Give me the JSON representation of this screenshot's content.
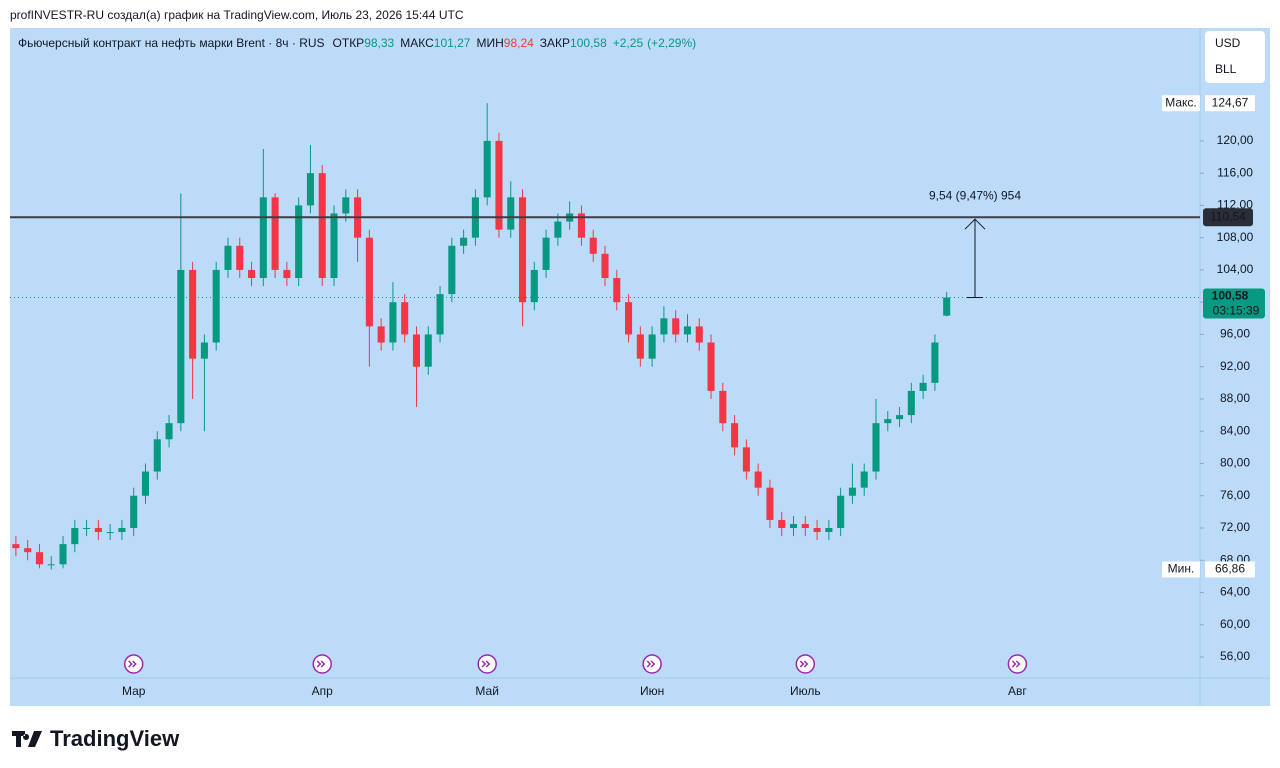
{
  "header": "profINVESTR-RU создал(а) график на TradingView.com, Июль 23, 2026 15:44 UTC",
  "logo": "TradingView",
  "chart_data": {
    "type": "candlestick",
    "title": "Фьючерсный контракт на нефть марки Brent · 8ч · RUS",
    "ohlc_legend": [
      {
        "name": "ОТКР",
        "value": 98.33,
        "label": "98,33"
      },
      {
        "name": "МАКС",
        "value": 101.27,
        "label": "101,27"
      },
      {
        "name": "МИН",
        "value": 98.24,
        "label": "98,24"
      },
      {
        "name": "ЗАКР",
        "value": 100.58,
        "label": "100,58"
      }
    ],
    "change": {
      "value": 2.25,
      "label": "+2,25"
    },
    "change_pct": {
      "value": 2.29,
      "label": "(+2,29%)"
    },
    "currency": [
      "USD",
      "BLL"
    ],
    "up_color": "#089981",
    "down_color": "#f23645",
    "categories": [
      null,
      null,
      null,
      null,
      null,
      null,
      null,
      null,
      null,
      null,
      "Мар",
      null,
      null,
      null,
      null,
      null,
      null,
      null,
      null,
      null,
      null,
      null,
      null,
      null,
      null,
      null,
      "Апр",
      null,
      null,
      null,
      null,
      null,
      null,
      null,
      null,
      null,
      null,
      null,
      null,
      null,
      "Май",
      null,
      null,
      null,
      null,
      null,
      null,
      null,
      null,
      null,
      null,
      null,
      null,
      null,
      "Июн",
      null,
      null,
      null,
      null,
      null,
      null,
      null,
      null,
      null,
      null,
      null,
      null,
      "Июль",
      null,
      null,
      null,
      null,
      null,
      null,
      null,
      null,
      null,
      null,
      null,
      null,
      null,
      null,
      null,
      null,
      null,
      "Авг",
      null,
      null,
      null,
      null,
      null,
      null,
      null,
      null,
      null,
      null,
      null,
      null,
      null,
      null,
      null
    ],
    "open": [
      70,
      69.5,
      69,
      67.5,
      67.5,
      70,
      72,
      72,
      71.5,
      71.5,
      72,
      76,
      79,
      83,
      85,
      104,
      93,
      95,
      104,
      107,
      104,
      103,
      113,
      104,
      103,
      112,
      116,
      103,
      111,
      113,
      108,
      97,
      95,
      100,
      96,
      92,
      96,
      101,
      107,
      108,
      113,
      120,
      109,
      113,
      100,
      104,
      108,
      110,
      111,
      108,
      106,
      103,
      100,
      96,
      93,
      96,
      98,
      96,
      97,
      95,
      89,
      85,
      82,
      79,
      77,
      73,
      72,
      72.5,
      72,
      71.5,
      72,
      76,
      77,
      79,
      85,
      85.5,
      86,
      89,
      90,
      98.33,
      null,
      null,
      null,
      null,
      null,
      null,
      null,
      null,
      null,
      null,
      null,
      null,
      null,
      null,
      null,
      null,
      null,
      null,
      null,
      null,
      null
    ],
    "high": [
      71,
      70.5,
      70,
      68.5,
      71,
      73,
      73,
      73,
      72.5,
      73,
      77,
      80,
      84,
      86,
      113.5,
      105,
      96,
      105,
      108,
      108,
      105,
      119,
      113.5,
      105,
      113,
      119.5,
      117,
      112,
      114,
      114,
      109,
      98,
      102.5,
      101,
      97,
      97,
      102,
      108,
      109,
      114,
      124.67,
      121,
      115,
      114,
      105,
      109,
      111,
      112.5,
      112,
      109,
      107,
      104,
      101,
      97,
      97,
      99.5,
      99,
      98.5,
      98,
      96,
      90,
      86,
      83,
      80,
      78,
      74,
      73.5,
      73.5,
      73,
      73,
      77,
      80,
      80,
      88,
      86.5,
      87,
      90,
      91,
      96,
      101.27,
      null,
      null,
      null,
      null,
      null,
      null,
      null,
      null,
      null,
      null,
      null,
      null,
      null,
      null,
      null,
      null,
      null,
      null,
      null,
      null,
      null
    ],
    "low": [
      68.5,
      68,
      67,
      66.86,
      67,
      69,
      71,
      70.5,
      70.5,
      70.5,
      71,
      75,
      78,
      82,
      84,
      88,
      84,
      94,
      103,
      103,
      102,
      102,
      103,
      102,
      102,
      111,
      102,
      102,
      110,
      105,
      92,
      94,
      94,
      95,
      87,
      91,
      95,
      100,
      106,
      107,
      112,
      108,
      108,
      97,
      99,
      103,
      107,
      109,
      107,
      105,
      102,
      99,
      95,
      92,
      92,
      95,
      95,
      95,
      94,
      88,
      84,
      81,
      78,
      76,
      72,
      71,
      71,
      71,
      70.5,
      70.5,
      71,
      75,
      76,
      78,
      84,
      84.5,
      85,
      88,
      89,
      98.24,
      null,
      null,
      null,
      null,
      null,
      null,
      null,
      null,
      null,
      null,
      null,
      null,
      null,
      null,
      null,
      null,
      null,
      null,
      null,
      null,
      null
    ],
    "close": [
      69.5,
      69,
      67.5,
      67.5,
      70,
      72,
      72,
      71.5,
      71.5,
      72,
      76,
      79,
      83,
      85,
      104,
      93,
      95,
      104,
      107,
      104,
      103,
      113,
      104,
      103,
      112,
      116,
      103,
      111,
      113,
      108,
      97,
      95,
      100,
      96,
      92,
      96,
      101,
      107,
      108,
      113,
      120,
      109,
      113,
      100,
      104,
      108,
      110,
      111,
      108,
      106,
      103,
      100,
      96,
      93,
      96,
      98,
      96,
      97,
      95,
      89,
      85,
      82,
      79,
      77,
      73,
      72,
      72.5,
      72,
      71.5,
      72,
      76,
      77,
      79,
      85,
      85.5,
      86,
      89,
      90,
      95,
      100.58,
      null,
      null,
      null,
      null,
      null,
      null,
      null,
      null,
      null,
      null,
      null,
      null,
      null,
      null,
      null,
      null,
      null,
      null,
      null,
      null,
      null
    ],
    "ylim": [
      53.4,
      134.0
    ],
    "yticks": [
      {
        "value": 56,
        "label": "56,00"
      },
      {
        "value": 60,
        "label": "60,00"
      },
      {
        "value": 64,
        "label": "64,00"
      },
      {
        "value": 68,
        "label": "68,00"
      },
      {
        "value": 72,
        "label": "72,00"
      },
      {
        "value": 76,
        "label": "76,00"
      },
      {
        "value": 80,
        "label": "80,00"
      },
      {
        "value": 84,
        "label": "84,00"
      },
      {
        "value": 88,
        "label": "88,00"
      },
      {
        "value": 92,
        "label": "92,00"
      },
      {
        "value": 96,
        "label": "96,00"
      },
      {
        "value": 100,
        "label": "100,00"
      },
      {
        "value": 104,
        "label": "104,00"
      },
      {
        "value": 108,
        "label": "108,00"
      },
      {
        "value": 112,
        "label": "112,00"
      },
      {
        "value": 116,
        "label": "116,00"
      },
      {
        "value": 120,
        "label": "120,00"
      }
    ],
    "level": {
      "value": 110.54,
      "label": "110,54"
    },
    "last_price": {
      "value": 100.58,
      "label": "100,58",
      "countdown": "03:15:39"
    },
    "max": {
      "name": "Макс.",
      "value": 124.67,
      "label": "124,67"
    },
    "min": {
      "name": "Мин.",
      "value": 66.86,
      "label": "66,86"
    },
    "measure_label": "9,54 (9,47%) 954"
  }
}
